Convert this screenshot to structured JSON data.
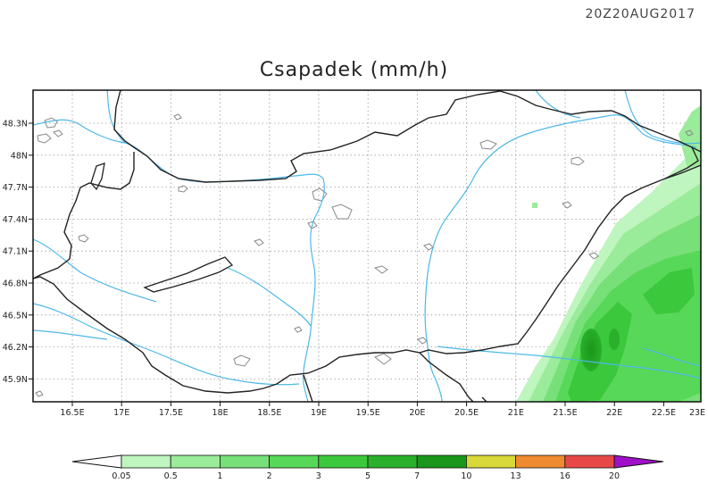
{
  "timestamp": "20Z20AUG2017",
  "title": "Csapadek (mm/h)",
  "lon_ticks": [
    "16.5E",
    "17E",
    "17.5E",
    "18E",
    "18.5E",
    "19E",
    "19.5E",
    "20E",
    "20.5E",
    "21E",
    "21.5E",
    "22E",
    "22.5E",
    "23E"
  ],
  "lat_ticks": [
    "48.3N",
    "48N",
    "47.7N",
    "47.4N",
    "47.1N",
    "46.8N",
    "46.5N",
    "46.2N",
    "45.9N"
  ],
  "colorbar": {
    "labels": [
      "0.05",
      "0.5",
      "1",
      "2",
      "3",
      "5",
      "7",
      "10",
      "13",
      "16",
      "20"
    ],
    "colors": [
      "#bff5bf",
      "#9aeb9a",
      "#78e078",
      "#58d858",
      "#3cc83c",
      "#2ab02a",
      "#1a961a",
      "#d8d83a",
      "#ef8a30",
      "#e84848",
      "#a010c8"
    ]
  },
  "colors": {
    "rivers": "#4db8e8",
    "borders": "#222222",
    "lakes": "#888888",
    "gridlines": "#999999"
  }
}
